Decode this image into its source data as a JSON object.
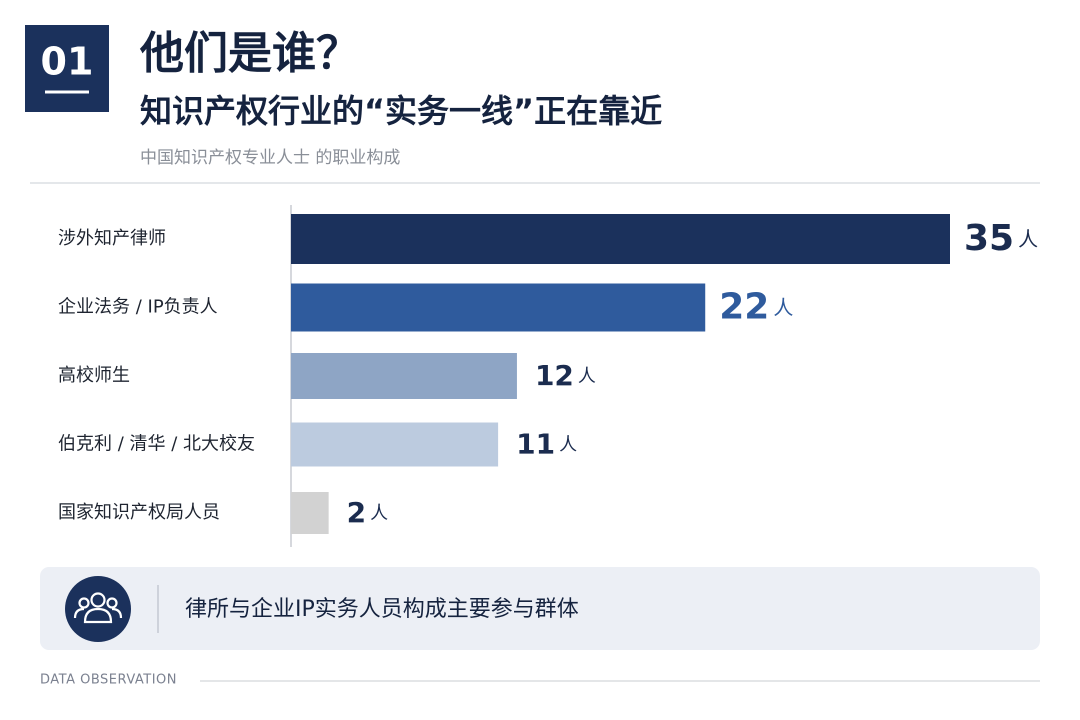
{
  "header": {
    "badge": "01",
    "title": "他们是谁？",
    "subtitle": "知识产权行业的“实务一线”正在靠近",
    "caption": "中国知识产权专业人士 的职业构成"
  },
  "chart_data": {
    "type": "bar",
    "orientation": "horizontal",
    "categories": [
      "涉外知产律师",
      "企业法务 / IP负责人",
      "高校师生",
      "伯克利 / 清华 / 北大校友",
      "国家知识产权局人员"
    ],
    "values": [
      35,
      22,
      12,
      11,
      2
    ],
    "colors": [
      "#1b315c",
      "#2f5b9d",
      "#8ea5c5",
      "#bccbdf",
      "#d2d2d2"
    ],
    "label_colors": [
      "#1b2c4f",
      "#2f5b9d",
      "#1b2c4f",
      "#1b2c4f",
      "#1b2c4f"
    ],
    "unit": "人",
    "xlim": [
      0,
      35
    ]
  },
  "callout": {
    "text": "律所与企业IP实务人员构成主要参与群体"
  },
  "footer": {
    "label": "DATA OBSERVATION"
  }
}
